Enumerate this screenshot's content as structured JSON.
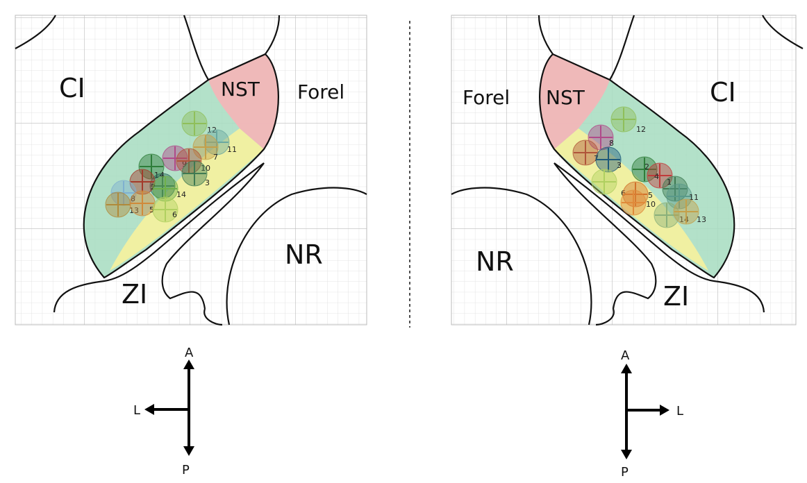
{
  "left_panel": {
    "regions": {
      "ci": "CI",
      "nst": "NST",
      "forel": "Forel",
      "zi": "ZI",
      "nr": "NR"
    },
    "points": [
      "12",
      "11",
      "7",
      "9",
      "10",
      "3",
      "1",
      "4",
      "2",
      "14",
      "8",
      "13",
      "5",
      "6"
    ]
  },
  "right_panel": {
    "regions": {
      "ci": "CI",
      "nst": "NST",
      "forel": "Forel",
      "zi": "ZI",
      "nr": "NR"
    },
    "points": [
      "12",
      "8",
      "7",
      "3",
      "2",
      "4",
      "1",
      "6",
      "5",
      "10",
      "11",
      "14",
      "13"
    ]
  },
  "left_compass": {
    "anterior": "A",
    "lateral": "L",
    "posterior": "P"
  },
  "right_compass": {
    "anterior": "A",
    "lateral": "L",
    "posterior": "P"
  }
}
